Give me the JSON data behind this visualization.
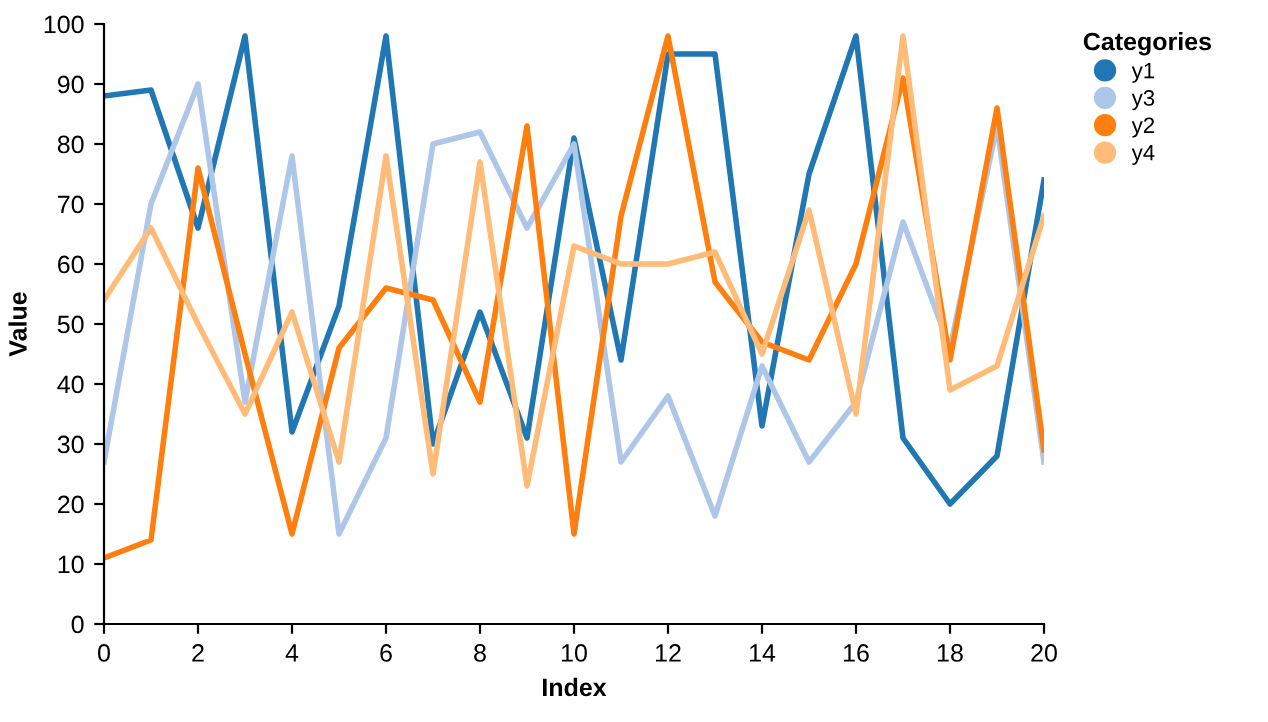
{
  "chart_data": {
    "type": "line",
    "xlabel": "Index",
    "ylabel": "Value",
    "legend_title": "Categories",
    "legend": "top right",
    "grid": false,
    "x": [
      0,
      1,
      2,
      3,
      4,
      5,
      6,
      7,
      8,
      9,
      10,
      11,
      12,
      13,
      14,
      15,
      16,
      17,
      18,
      19,
      20
    ],
    "xlim": [
      0,
      20
    ],
    "xticks": [
      0,
      2,
      4,
      6,
      8,
      10,
      12,
      14,
      16,
      18,
      20
    ],
    "ylim": [
      0,
      100
    ],
    "yticks": [
      0,
      10,
      20,
      30,
      40,
      50,
      60,
      70,
      80,
      90,
      100
    ],
    "series": [
      {
        "name": "y1",
        "color": "#1f77b4",
        "values": [
          88,
          89,
          66,
          98,
          32,
          53,
          98,
          30,
          52,
          31,
          81,
          44,
          95,
          95,
          33,
          75,
          98,
          31,
          20,
          28,
          74
        ]
      },
      {
        "name": "y3",
        "color": "#aec7e8",
        "values": [
          27,
          70,
          90,
          37,
          78,
          15,
          31,
          80,
          82,
          66,
          80,
          27,
          38,
          18,
          43,
          27,
          37,
          67,
          46,
          83,
          27
        ]
      },
      {
        "name": "y2",
        "color": "#ff7f0e",
        "values": [
          11,
          14,
          76,
          45,
          15,
          46,
          56,
          54,
          37,
          83,
          15,
          68,
          98,
          57,
          47,
          44,
          60,
          91,
          44,
          86,
          29
        ]
      },
      {
        "name": "y4",
        "color": "#ffbb78",
        "values": [
          54,
          66,
          50,
          35,
          52,
          27,
          78,
          25,
          77,
          23,
          63,
          60,
          60,
          62,
          45,
          69,
          35,
          98,
          39,
          43,
          68
        ]
      }
    ]
  }
}
